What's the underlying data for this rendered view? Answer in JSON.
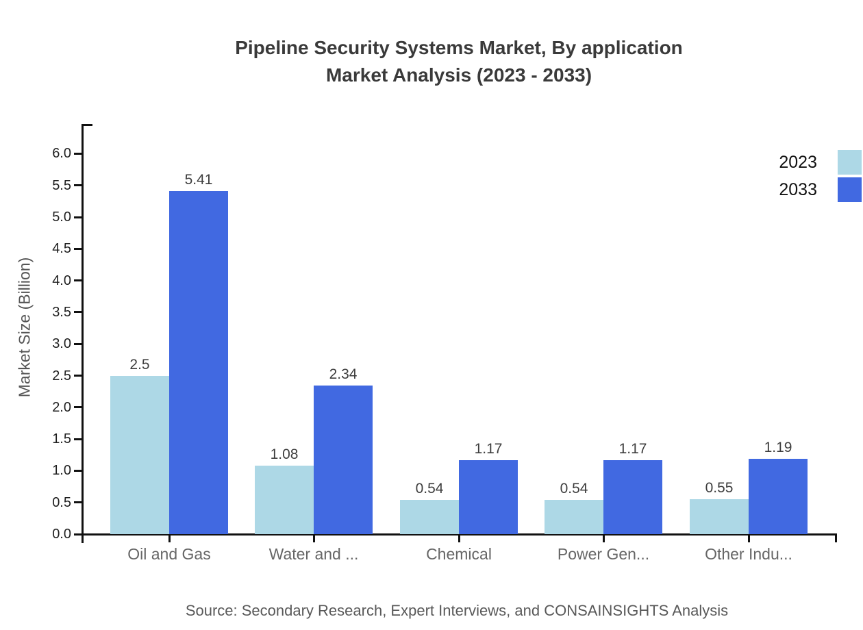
{
  "title": {
    "line1": "Pipeline Security Systems Market, By application",
    "line2": "Market Analysis (2023 - 2033)"
  },
  "source_note": "Source: Secondary Research, Expert Interviews, and CONSAINSIGHTS Analysis",
  "chart_data": {
    "type": "bar",
    "title": "Pipeline Security Systems Market, By application Market Analysis (2023 - 2033)",
    "categories": [
      "Oil and Gas",
      "Water and ...",
      "Chemical",
      "Power Gen...",
      "Other Indu..."
    ],
    "series": [
      {
        "name": "2023",
        "color": "#ADD8E6",
        "values": [
          2.5,
          1.08,
          0.54,
          0.54,
          0.55
        ],
        "labels": [
          "2.5",
          "1.08",
          "0.54",
          "0.54",
          "0.55"
        ]
      },
      {
        "name": "2033",
        "color": "#4169E1",
        "values": [
          5.41,
          2.34,
          1.17,
          1.17,
          1.19
        ],
        "labels": [
          "5.41",
          "2.34",
          "1.17",
          "1.17",
          "1.19"
        ]
      }
    ],
    "xlabel": "",
    "ylabel": "Market Size (Billion)",
    "ylim": [
      0,
      6.5
    ],
    "yticks": {
      "values": [
        0,
        0.5,
        1,
        1.5,
        2,
        2.5,
        3,
        3.5,
        4,
        4.5,
        5,
        5.5,
        6
      ],
      "labels": [
        "0.0",
        "0.5",
        "1.0",
        "1.5",
        "2.0",
        "2.5",
        "3.0",
        "3.5",
        "4.0",
        "4.5",
        "5.0",
        "5.5",
        "6.0"
      ]
    },
    "grid": false,
    "legend_position": "top-right"
  },
  "colors": {
    "series_2023": "#ADD8E6",
    "series_2033": "#4169E1",
    "axis": "#111111",
    "title_text": "#3a3a3a",
    "tick_label": "#1f1f1f",
    "category_label": "#666666",
    "value_label": "#3d3d3d",
    "axis_title": "#555555",
    "source_text": "#595959"
  }
}
